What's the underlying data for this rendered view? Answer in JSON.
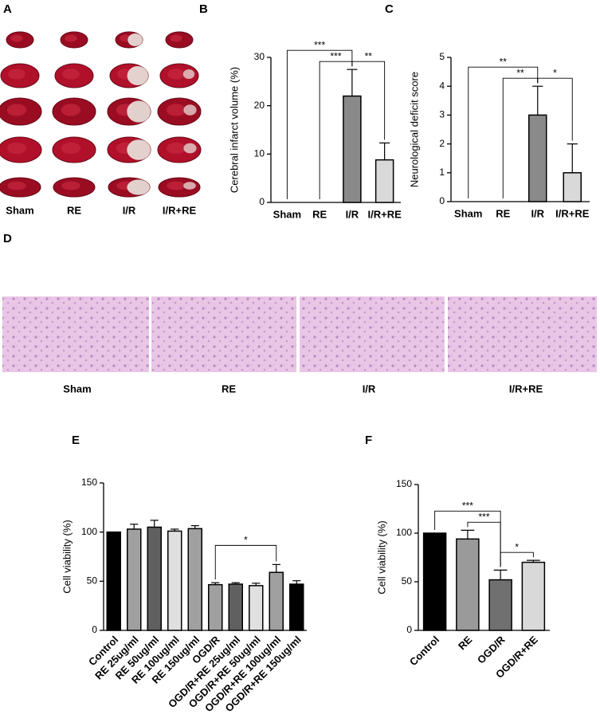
{
  "slices": {
    "label": "A",
    "columns": [
      "Sham",
      "RE",
      "I/R",
      "I/R+RE"
    ]
  },
  "histology": {
    "label": "D",
    "columns": [
      "Sham",
      "RE",
      "I/R",
      "I/R+RE"
    ]
  },
  "chart_data": [
    {
      "type": "bar",
      "label": "B",
      "y_label": "Cerebral infarct volume (%)",
      "categories": [
        "Sham",
        "RE",
        "I/R",
        "I/R+RE"
      ],
      "values": [
        0,
        0,
        22,
        8.8
      ],
      "errors": [
        0,
        0,
        5.5,
        3.5
      ],
      "colors": [
        "#a0a0a0",
        "#a0a0a0",
        "#8a8a8a",
        "#d9d9d9"
      ],
      "ylim": [
        0,
        30
      ],
      "yticks": [
        0,
        10,
        20,
        30
      ],
      "annotations": [
        {
          "from": 0,
          "to": 2,
          "text": "***"
        },
        {
          "from": 1,
          "to": 2,
          "text": "***"
        },
        {
          "from": 2,
          "to": 3,
          "text": "**"
        }
      ]
    },
    {
      "type": "bar",
      "label": "C",
      "y_label": "Neurological deficit score",
      "categories": [
        "Sham",
        "RE",
        "I/R",
        "I/R+RE"
      ],
      "values": [
        0,
        0,
        3,
        1
      ],
      "errors": [
        0,
        0,
        1,
        1
      ],
      "colors": [
        "#a0a0a0",
        "#a0a0a0",
        "#8a8a8a",
        "#d9d9d9"
      ],
      "ylim": [
        0,
        5
      ],
      "yticks": [
        0,
        1,
        2,
        3,
        4,
        5
      ],
      "annotations": [
        {
          "from": 0,
          "to": 2,
          "text": "**"
        },
        {
          "from": 1,
          "to": 2,
          "text": "**"
        },
        {
          "from": 2,
          "to": 3,
          "text": "*"
        }
      ]
    },
    {
      "type": "bar",
      "label": "E",
      "y_label": "Cell viability (%)",
      "categories": [
        "Control",
        "RE 25ug/ml",
        "RE 50ug/ml",
        "RE 100ug/ml",
        "RE 150ug/ml",
        "OGD/R",
        "OGD/R+RE 25ug/ml",
        "OGD/R+RE 50ug/ml",
        "OGD/R+RE 100ug/ml",
        "OGD/R+RE 150ug/ml"
      ],
      "values": [
        100,
        103,
        105,
        101,
        103.5,
        46.5,
        47,
        45.5,
        59,
        47
      ],
      "errors": [
        0,
        5,
        7,
        2,
        3,
        2,
        1.5,
        2.5,
        8,
        3.5
      ],
      "colors": [
        "#000000",
        "#a0a0a0",
        "#606060",
        "#e0e0e0",
        "#a0a0a0",
        "#a0a0a0",
        "#606060",
        "#e0e0e0",
        "#a0a0a0",
        "#000000"
      ],
      "ylim": [
        0,
        150
      ],
      "yticks": [
        0,
        50,
        100,
        150
      ],
      "annotations": [
        {
          "from": 5,
          "to": 8,
          "text": "*"
        }
      ]
    },
    {
      "type": "bar",
      "label": "F",
      "y_label": "Cell viability (%)",
      "categories": [
        "Control",
        "RE",
        "OGD/R",
        "OGD/R+RE"
      ],
      "values": [
        100,
        94,
        52,
        70
      ],
      "errors": [
        0,
        9,
        10,
        2
      ],
      "colors": [
        "#000000",
        "#9a9a9a",
        "#707070",
        "#d9d9d9"
      ],
      "ylim": [
        0,
        150
      ],
      "yticks": [
        0,
        50,
        100,
        150
      ],
      "annotations": [
        {
          "from": 0,
          "to": 2,
          "text": "***"
        },
        {
          "from": 1,
          "to": 2,
          "text": "***"
        },
        {
          "from": 2,
          "to": 3,
          "text": "*"
        }
      ]
    }
  ]
}
